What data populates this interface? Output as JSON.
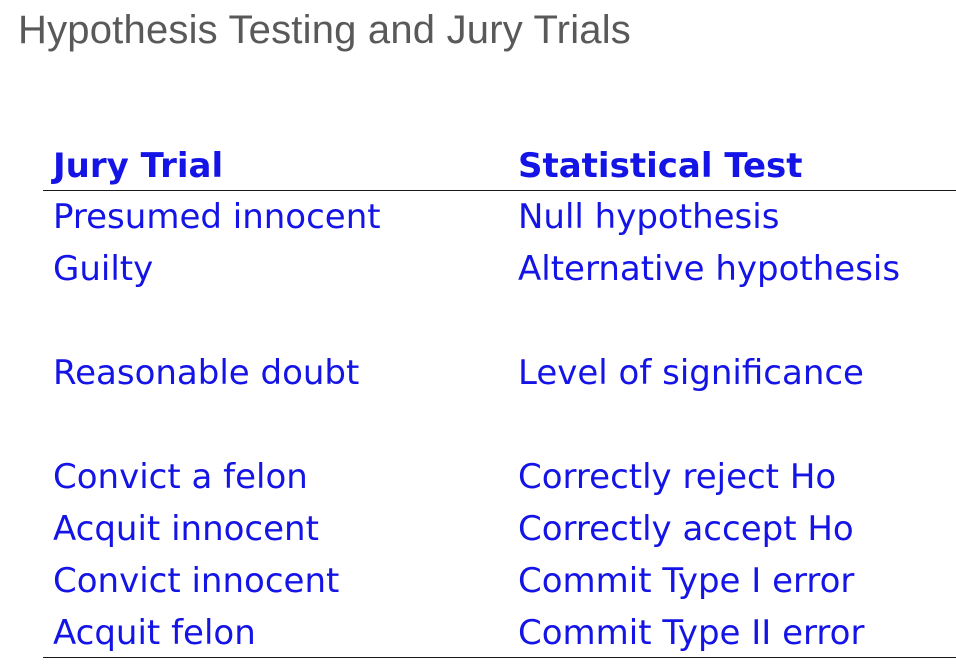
{
  "slide": {
    "title": "Hypothesis Testing and Jury Trials"
  },
  "table": {
    "headers": {
      "left": "Jury Trial",
      "right": "Statistical Test"
    },
    "rows": [
      {
        "left": "Presumed innocent",
        "right": "Null hypothesis"
      },
      {
        "left": "Guilty",
        "right": "Alternative hypothesis"
      },
      {
        "left": "",
        "right": ""
      },
      {
        "left": "Reasonable doubt",
        "right": "Level of significance"
      },
      {
        "left": "",
        "right": ""
      },
      {
        "left": "Convict a felon",
        "right": "Correctly reject Ho"
      },
      {
        "left": "Acquit innocent",
        "right": "Correctly accept Ho"
      },
      {
        "left": "Convict innocent",
        "right": "Commit Type I error"
      },
      {
        "left": "Acquit felon",
        "right": "Commit Type II error"
      }
    ]
  },
  "colors": {
    "title": "#595959",
    "table_text": "#1414e6",
    "rule": "#1a1a1a"
  }
}
